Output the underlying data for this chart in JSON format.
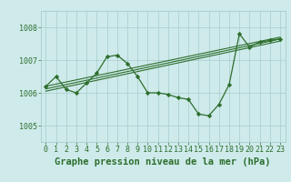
{
  "bg_color": "#ceeaea",
  "grid_color": "#a8cccc",
  "line_color": "#2d6e2d",
  "marker_color": "#2d6e2d",
  "title": "Graphe pression niveau de la mer (hPa)",
  "xlim": [
    -0.5,
    23.5
  ],
  "ylim": [
    1004.5,
    1008.5
  ],
  "yticks": [
    1005,
    1006,
    1007,
    1008
  ],
  "xticks": [
    0,
    1,
    2,
    3,
    4,
    5,
    6,
    7,
    8,
    9,
    10,
    11,
    12,
    13,
    14,
    15,
    16,
    17,
    18,
    19,
    20,
    21,
    22,
    23
  ],
  "xtick_labels": [
    "0",
    "1",
    "2",
    "3",
    "4",
    "5",
    "6",
    "7",
    "8",
    "9",
    "10",
    "11",
    "12",
    "13",
    "14",
    "15",
    "16",
    "17",
    "18",
    "19",
    "20",
    "21",
    "22",
    "23"
  ],
  "pressure_data": [
    1006.2,
    1006.5,
    1006.1,
    1006.0,
    1006.3,
    1006.6,
    1007.1,
    1007.15,
    1006.9,
    1006.5,
    1006.0,
    1006.0,
    1005.95,
    1005.85,
    1005.8,
    1005.35,
    1005.3,
    1005.65,
    1006.25,
    1007.8,
    1007.4,
    1007.55,
    1007.6,
    1007.65
  ],
  "trend_lines": [
    {
      "x": [
        0,
        23
      ],
      "y": [
        1006.05,
        1007.58
      ]
    },
    {
      "x": [
        0,
        23
      ],
      "y": [
        1006.12,
        1007.64
      ]
    },
    {
      "x": [
        0,
        23
      ],
      "y": [
        1006.2,
        1007.7
      ]
    }
  ],
  "title_fontsize": 7.5,
  "tick_fontsize": 6.0
}
